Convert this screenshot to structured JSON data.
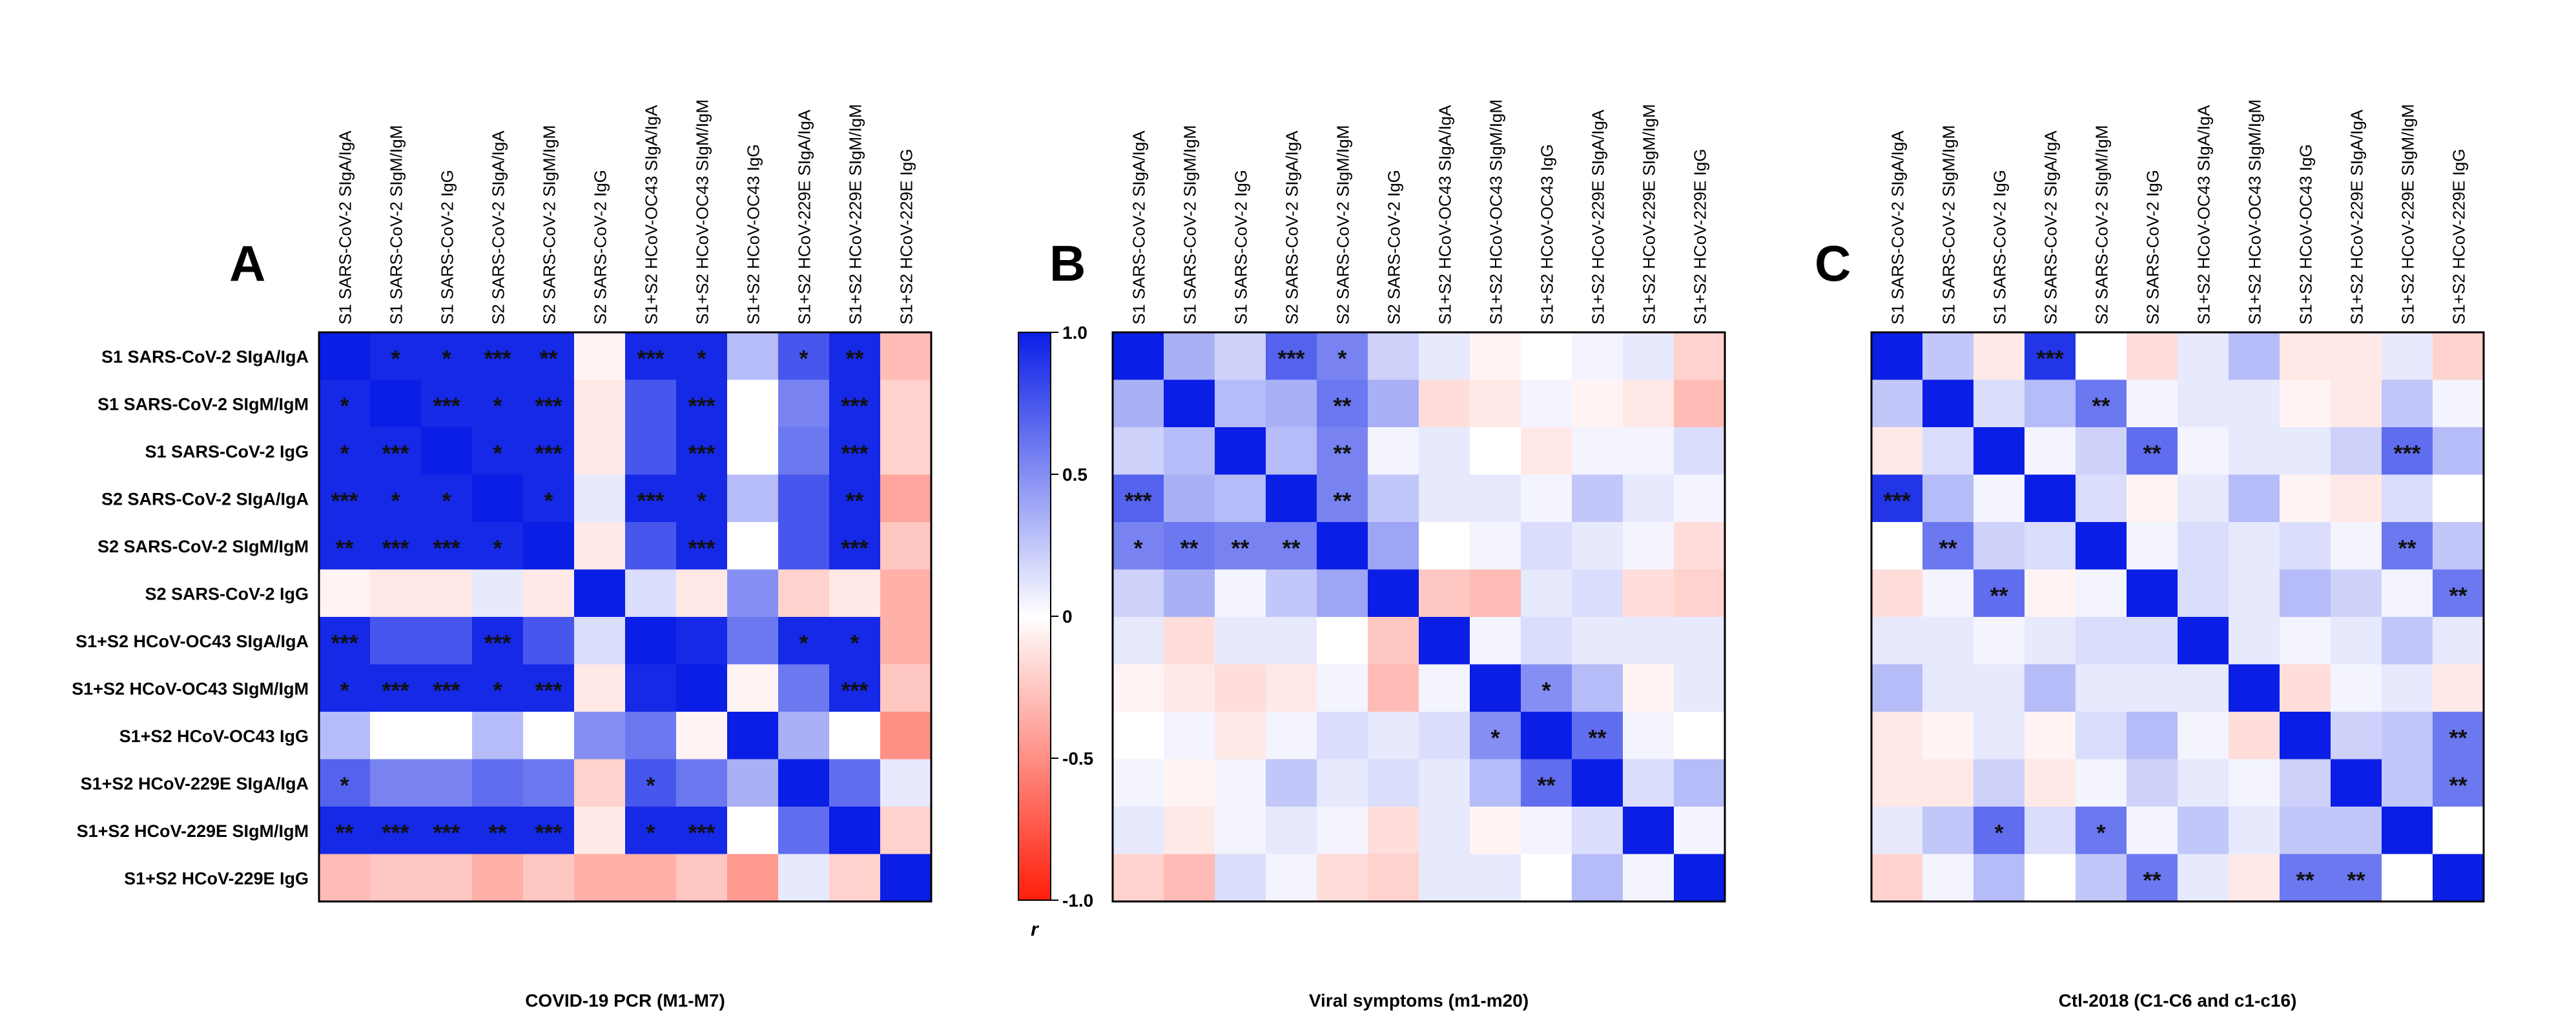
{
  "chart_data": {
    "type": "heatmap",
    "row_labels": [
      "S1 SARS-CoV-2 SIgA/IgA",
      "S1 SARS-CoV-2 SIgM/IgM",
      "S1 SARS-CoV-2 IgG",
      "S2 SARS-CoV-2 SIgA/IgA",
      "S2 SARS-CoV-2 SIgM/IgM",
      "S2 SARS-CoV-2 IgG",
      "S1+S2 HCoV-OC43 SIgA/IgA",
      "S1+S2 HCoV-OC43 SIgM/IgM",
      "S1+S2 HCoV-OC43 IgG",
      "S1+S2 HCoV-229E SIgA/IgA",
      "S1+S2 HCoV-229E SIgM/IgM",
      "S1+S2 HCoV-229E IgG"
    ],
    "col_labels": [
      "S1 SARS-CoV-2 SIgA/IgA",
      "S1 SARS-CoV-2 SIgM/IgM",
      "S1 SARS-CoV-2 IgG",
      "S2 SARS-CoV-2 SIgA/IgA",
      "S2 SARS-CoV-2 SIgM/IgM",
      "S2 SARS-CoV-2 IgG",
      "S1+S2 HCoV-OC43 SIgA/IgA",
      "S1+S2 HCoV-OC43 SIgM/IgM",
      "S1+S2 HCoV-OC43 IgG",
      "S1+S2 HCoV-229E SIgA/IgA",
      "S1+S2 HCoV-229E SIgM/IgM",
      "S1+S2 HCoV-229E IgG"
    ],
    "colorbar": {
      "label": "r",
      "ticks": [
        "1.0",
        "0.5",
        "0",
        "-0.5",
        "-1.0"
      ],
      "range": [
        -1,
        1
      ]
    },
    "panels": [
      {
        "letter": "A",
        "title": "COVID-19 PCR (M1-M7)",
        "values": [
          [
            1.0,
            0.95,
            0.95,
            0.95,
            0.95,
            -0.05,
            0.95,
            0.95,
            0.3,
            0.75,
            0.95,
            -0.3
          ],
          [
            0.95,
            1.0,
            0.95,
            0.95,
            0.95,
            -0.1,
            0.75,
            0.95,
            0.0,
            0.55,
            0.95,
            -0.2
          ],
          [
            0.95,
            0.95,
            1.0,
            0.95,
            0.95,
            -0.1,
            0.75,
            0.95,
            0.0,
            0.6,
            0.95,
            -0.2
          ],
          [
            0.95,
            0.95,
            0.95,
            1.0,
            0.95,
            0.1,
            0.95,
            0.95,
            0.3,
            0.75,
            0.95,
            -0.4
          ],
          [
            0.95,
            0.95,
            0.95,
            0.95,
            1.0,
            -0.1,
            0.75,
            0.95,
            0.0,
            0.75,
            0.95,
            -0.25
          ],
          [
            -0.05,
            -0.1,
            -0.1,
            0.1,
            -0.1,
            1.0,
            0.15,
            -0.1,
            0.5,
            -0.2,
            -0.1,
            -0.35
          ],
          [
            0.95,
            0.75,
            0.75,
            0.95,
            0.75,
            0.15,
            1.0,
            0.95,
            0.6,
            0.95,
            0.95,
            -0.35
          ],
          [
            0.95,
            0.95,
            0.95,
            0.95,
            0.95,
            -0.1,
            0.95,
            1.0,
            -0.05,
            0.6,
            0.95,
            -0.25
          ],
          [
            0.3,
            0.0,
            0.0,
            0.3,
            0.0,
            0.5,
            0.6,
            -0.05,
            1.0,
            0.35,
            0.0,
            -0.5
          ],
          [
            0.7,
            0.55,
            0.55,
            0.65,
            0.6,
            -0.2,
            0.75,
            0.6,
            0.35,
            1.0,
            0.65,
            0.1
          ],
          [
            0.95,
            0.95,
            0.95,
            0.95,
            0.95,
            -0.1,
            0.95,
            0.95,
            0.0,
            0.65,
            1.0,
            -0.2
          ],
          [
            -0.3,
            -0.25,
            -0.25,
            -0.35,
            -0.25,
            -0.35,
            -0.35,
            -0.25,
            -0.45,
            0.1,
            -0.2,
            1.0
          ]
        ],
        "stars": [
          [
            "",
            "*",
            "*",
            "***",
            "**",
            "",
            "***",
            "*",
            "",
            "*",
            "**",
            ""
          ],
          [
            "*",
            "",
            "***",
            "*",
            "***",
            "",
            "",
            "***",
            "",
            "",
            "***",
            ""
          ],
          [
            "*",
            "***",
            "",
            "*",
            "***",
            "",
            "",
            "***",
            "",
            "",
            "***",
            ""
          ],
          [
            "***",
            "*",
            "*",
            "",
            "*",
            "",
            "***",
            "*",
            "",
            "",
            "**",
            ""
          ],
          [
            "**",
            "***",
            "***",
            "*",
            "",
            "",
            "",
            "***",
            "",
            "",
            "***",
            ""
          ],
          [
            "",
            "",
            "",
            "",
            "",
            "",
            "",
            "",
            "",
            "",
            "",
            ""
          ],
          [
            "***",
            "",
            "",
            "***",
            "",
            "",
            "",
            "",
            "",
            "*",
            "*",
            ""
          ],
          [
            "*",
            "***",
            "***",
            "*",
            "***",
            "",
            "",
            "",
            "",
            "",
            "***",
            ""
          ],
          [
            "",
            "",
            "",
            "",
            "",
            "",
            "",
            "",
            "",
            "",
            "",
            ""
          ],
          [
            "*",
            "",
            "",
            "",
            "",
            "",
            "*",
            "",
            "",
            "",
            "",
            ""
          ],
          [
            "**",
            "***",
            "***",
            "**",
            "***",
            "",
            "*",
            "***",
            "",
            "",
            "",
            ""
          ],
          [
            "",
            "",
            "",
            "",
            "",
            "",
            "",
            "",
            "",
            "",
            "",
            ""
          ]
        ]
      },
      {
        "letter": "B",
        "title": "Viral symptoms (m1-m20)",
        "values": [
          [
            1.0,
            0.35,
            0.2,
            0.7,
            0.55,
            0.2,
            0.1,
            -0.05,
            0.0,
            0.05,
            0.1,
            -0.2
          ],
          [
            0.35,
            1.0,
            0.3,
            0.35,
            0.6,
            0.35,
            -0.15,
            -0.1,
            0.05,
            -0.05,
            -0.1,
            -0.3
          ],
          [
            0.2,
            0.3,
            1.0,
            0.3,
            0.55,
            0.05,
            0.1,
            0.0,
            -0.1,
            0.05,
            0.05,
            0.15
          ],
          [
            0.7,
            0.35,
            0.3,
            1.0,
            0.55,
            0.25,
            0.1,
            0.1,
            0.05,
            0.25,
            0.1,
            0.05
          ],
          [
            0.55,
            0.6,
            0.55,
            0.55,
            1.0,
            0.4,
            0.0,
            0.05,
            0.15,
            0.1,
            0.05,
            -0.15
          ],
          [
            0.2,
            0.35,
            0.05,
            0.25,
            0.4,
            1.0,
            -0.25,
            -0.3,
            0.1,
            0.15,
            -0.15,
            -0.2
          ],
          [
            0.1,
            -0.15,
            0.1,
            0.1,
            0.0,
            -0.25,
            1.0,
            0.05,
            0.15,
            0.1,
            0.1,
            0.1
          ],
          [
            -0.05,
            -0.1,
            -0.15,
            -0.1,
            0.05,
            -0.3,
            0.05,
            1.0,
            0.5,
            0.3,
            -0.05,
            0.1
          ],
          [
            0.0,
            0.05,
            -0.1,
            0.05,
            0.15,
            0.1,
            0.15,
            0.5,
            1.0,
            0.65,
            0.05,
            0.0
          ],
          [
            0.05,
            -0.05,
            0.05,
            0.25,
            0.1,
            0.15,
            0.1,
            0.3,
            0.65,
            1.0,
            0.15,
            0.3
          ],
          [
            0.1,
            -0.1,
            0.05,
            0.1,
            0.05,
            -0.15,
            0.1,
            -0.05,
            0.05,
            0.15,
            1.0,
            0.05
          ],
          [
            -0.2,
            -0.3,
            0.15,
            0.05,
            -0.15,
            -0.2,
            0.1,
            0.1,
            0.0,
            0.3,
            0.05,
            1.0
          ]
        ],
        "stars": [
          [
            "",
            "",
            "",
            "***",
            "*",
            "",
            "",
            "",
            "",
            "",
            "",
            ""
          ],
          [
            "",
            "",
            "",
            "",
            "**",
            "",
            "",
            "",
            "",
            "",
            "",
            ""
          ],
          [
            "",
            "",
            "",
            "",
            "**",
            "",
            "",
            "",
            "",
            "",
            "",
            ""
          ],
          [
            "***",
            "",
            "",
            "",
            "**",
            "",
            "",
            "",
            "",
            "",
            "",
            ""
          ],
          [
            "*",
            "**",
            "**",
            "**",
            "",
            "",
            "",
            "",
            "",
            "",
            "",
            ""
          ],
          [
            "",
            "",
            "",
            "",
            "",
            "",
            "",
            "",
            "",
            "",
            "",
            ""
          ],
          [
            "",
            "",
            "",
            "",
            "",
            "",
            "",
            "",
            "",
            "",
            "",
            ""
          ],
          [
            "",
            "",
            "",
            "",
            "",
            "",
            "",
            "",
            "*",
            "",
            "",
            ""
          ],
          [
            "",
            "",
            "",
            "",
            "",
            "",
            "",
            "*",
            "",
            "**",
            "",
            ""
          ],
          [
            "",
            "",
            "",
            "",
            "",
            "",
            "",
            "",
            "**",
            "",
            "",
            ""
          ],
          [
            "",
            "",
            "",
            "",
            "",
            "",
            "",
            "",
            "",
            "",
            "",
            ""
          ],
          [
            "",
            "",
            "",
            "",
            "",
            "",
            "",
            "",
            "",
            "",
            "",
            ""
          ]
        ]
      },
      {
        "letter": "C",
        "title": "Ctl-2018 (C1-C6 and c1-c16)",
        "values": [
          [
            1.0,
            0.25,
            -0.1,
            0.9,
            0.0,
            -0.15,
            0.1,
            0.3,
            -0.1,
            -0.1,
            0.1,
            -0.2
          ],
          [
            0.25,
            1.0,
            0.15,
            0.3,
            0.6,
            0.05,
            0.1,
            0.1,
            -0.05,
            -0.1,
            0.25,
            0.05
          ],
          [
            -0.1,
            0.15,
            1.0,
            0.05,
            0.2,
            0.65,
            0.05,
            0.1,
            0.1,
            0.2,
            0.65,
            0.3
          ],
          [
            0.9,
            0.3,
            0.05,
            1.0,
            0.15,
            -0.05,
            0.1,
            0.3,
            -0.05,
            -0.1,
            0.15,
            0.0
          ],
          [
            0.0,
            0.6,
            0.2,
            0.15,
            1.0,
            0.05,
            0.15,
            0.1,
            0.15,
            0.05,
            0.6,
            0.25
          ],
          [
            -0.15,
            0.05,
            0.65,
            -0.05,
            0.05,
            1.0,
            0.15,
            0.1,
            0.3,
            0.2,
            0.05,
            0.6
          ],
          [
            0.1,
            0.1,
            0.05,
            0.1,
            0.15,
            0.15,
            1.0,
            0.1,
            0.05,
            0.1,
            0.25,
            0.1
          ],
          [
            0.3,
            0.1,
            0.1,
            0.3,
            0.1,
            0.1,
            0.1,
            1.0,
            -0.15,
            0.05,
            0.1,
            -0.1
          ],
          [
            -0.1,
            -0.05,
            0.1,
            -0.05,
            0.15,
            0.3,
            0.05,
            -0.15,
            1.0,
            0.2,
            0.25,
            0.6
          ],
          [
            -0.1,
            -0.1,
            0.2,
            -0.1,
            0.05,
            0.2,
            0.1,
            0.05,
            0.2,
            1.0,
            0.25,
            0.6
          ],
          [
            0.1,
            0.25,
            0.65,
            0.15,
            0.6,
            0.05,
            0.25,
            0.1,
            0.25,
            0.25,
            1.0,
            0.0
          ],
          [
            -0.2,
            0.05,
            0.3,
            0.0,
            0.25,
            0.6,
            0.1,
            -0.1,
            0.6,
            0.6,
            0.0,
            1.0
          ]
        ],
        "stars": [
          [
            "",
            "",
            "",
            "***",
            "",
            "",
            "",
            "",
            "",
            "",
            "",
            ""
          ],
          [
            "",
            "",
            "",
            "",
            "**",
            "",
            "",
            "",
            "",
            "",
            "",
            ""
          ],
          [
            "",
            "",
            "",
            "",
            "",
            "**",
            "",
            "",
            "",
            "",
            "***",
            ""
          ],
          [
            "***",
            "",
            "",
            "",
            "",
            "",
            "",
            "",
            "",
            "",
            "",
            ""
          ],
          [
            "",
            "**",
            "",
            "",
            "",
            "",
            "",
            "",
            "",
            "",
            "**",
            ""
          ],
          [
            "",
            "",
            "**",
            "",
            "",
            "",
            "",
            "",
            "",
            "",
            "",
            "**"
          ],
          [
            "",
            "",
            "",
            "",
            "",
            "",
            "",
            "",
            "",
            "",
            "",
            ""
          ],
          [
            "",
            "",
            "",
            "",
            "",
            "",
            "",
            "",
            "",
            "",
            "",
            ""
          ],
          [
            "",
            "",
            "",
            "",
            "",
            "",
            "",
            "",
            "",
            "",
            "",
            "**"
          ],
          [
            "",
            "",
            "",
            "",
            "",
            "",
            "",
            "",
            "",
            "",
            "",
            "**"
          ],
          [
            "",
            "",
            "*",
            "",
            "*",
            "",
            "",
            "",
            "",
            "",
            "",
            ""
          ],
          [
            "",
            "",
            "",
            "",
            "",
            "**",
            "",
            "",
            "**",
            "**",
            "",
            ""
          ]
        ]
      }
    ]
  }
}
